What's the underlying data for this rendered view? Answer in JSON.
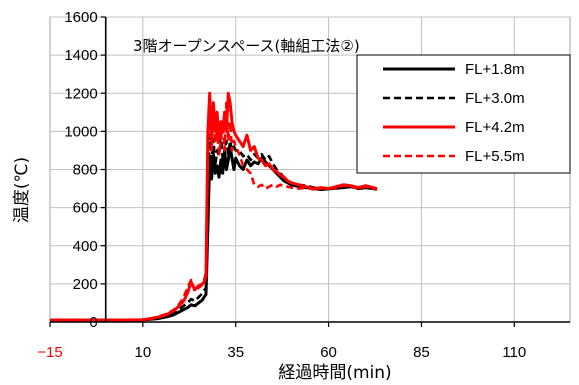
{
  "chart_data": {
    "type": "line",
    "title": "3階オープンスペース(軸組工法②)",
    "xlabel": "経過時間(min)",
    "ylabel": "温度(℃)",
    "xlim": [
      -15,
      125
    ],
    "ylim": [
      0,
      1600
    ],
    "y_axis_at_x": 0,
    "x_ticks": [
      -15,
      10,
      35,
      60,
      85,
      110
    ],
    "x_tick_labels": [
      "−15",
      "10",
      "35",
      "60",
      "85",
      "110"
    ],
    "x_tick_label_colors": [
      "#ff0000",
      "#000000",
      "#000000",
      "#000000",
      "#000000",
      "#000000"
    ],
    "y_ticks": [
      0,
      200,
      400,
      600,
      800,
      1000,
      1200,
      1400,
      1600
    ],
    "y_tick_labels": [
      "0",
      "200",
      "400",
      "600",
      "800",
      "1000",
      "1200",
      "1400",
      "1600"
    ],
    "grid": true,
    "legend_position": "top-right",
    "x": [
      -15,
      0,
      5,
      10,
      12,
      14,
      16,
      18,
      19,
      20,
      21,
      22,
      23,
      24,
      25,
      26,
      26.5,
      27,
      27.5,
      28,
      28.5,
      29,
      29.5,
      30,
      30.5,
      31,
      31.5,
      32,
      32.5,
      33,
      33.5,
      34,
      34.5,
      35,
      36,
      37,
      38,
      39,
      40,
      41,
      42,
      43,
      44,
      45,
      46,
      47,
      48,
      49,
      50,
      52,
      54,
      56,
      58,
      60,
      62,
      64,
      66,
      68,
      70,
      72,
      73
    ],
    "series": [
      {
        "name": "FL+1.8m",
        "color": "#000000",
        "style": "solid",
        "values": [
          10,
          10,
          10,
          11,
          14,
          18,
          25,
          35,
          45,
          55,
          65,
          75,
          90,
          85,
          100,
          115,
          130,
          145,
          500,
          850,
          750,
          880,
          780,
          820,
          760,
          850,
          780,
          900,
          800,
          850,
          920,
          860,
          800,
          860,
          820,
          800,
          850,
          820,
          840,
          830,
          860,
          840,
          820,
          800,
          780,
          760,
          740,
          730,
          720,
          710,
          705,
          700,
          695,
          698,
          702,
          705,
          710,
          700,
          705,
          700,
          695
        ]
      },
      {
        "name": "FL+3.0m",
        "color": "#000000",
        "style": "dashed",
        "values": [
          10,
          10,
          10,
          12,
          15,
          22,
          30,
          45,
          55,
          70,
          85,
          100,
          120,
          110,
          130,
          150,
          165,
          180,
          700,
          980,
          850,
          960,
          820,
          900,
          870,
          1000,
          850,
          900,
          950,
          880,
          950,
          900,
          920,
          900,
          900,
          870,
          880,
          850,
          880,
          860,
          880,
          850,
          870,
          830,
          800,
          780,
          760,
          740,
          730,
          720,
          715,
          705,
          700,
          700,
          705,
          710,
          712,
          705,
          710,
          705,
          700
        ]
      },
      {
        "name": "FL+4.2m",
        "color": "#ff0000",
        "style": "solid",
        "values": [
          10,
          10,
          10,
          12,
          18,
          25,
          35,
          55,
          70,
          90,
          110,
          150,
          210,
          170,
          190,
          200,
          210,
          240,
          1000,
          1200,
          950,
          1150,
          1000,
          1100,
          950,
          1050,
          1000,
          1100,
          1000,
          1200,
          1150,
          1050,
          1000,
          980,
          950,
          920,
          980,
          900,
          920,
          860,
          850,
          820,
          830,
          800,
          790,
          770,
          760,
          740,
          730,
          720,
          710,
          700,
          705,
          700,
          710,
          720,
          715,
          705,
          715,
          705,
          700
        ]
      },
      {
        "name": "FL+5.5m",
        "color": "#ff0000",
        "style": "dashed",
        "values": [
          10,
          10,
          10,
          12,
          18,
          28,
          40,
          60,
          75,
          100,
          130,
          180,
          220,
          160,
          180,
          195,
          220,
          260,
          950,
          1180,
          900,
          1100,
          950,
          1000,
          880,
          950,
          1050,
          900,
          1150,
          950,
          1050,
          900,
          950,
          920,
          880,
          820,
          800,
          780,
          720,
          710,
          720,
          700,
          710,
          720,
          710,
          720,
          715,
          710,
          705,
          700,
          705,
          695,
          700,
          705,
          700,
          715,
          710,
          700,
          710,
          700,
          695
        ]
      }
    ]
  }
}
